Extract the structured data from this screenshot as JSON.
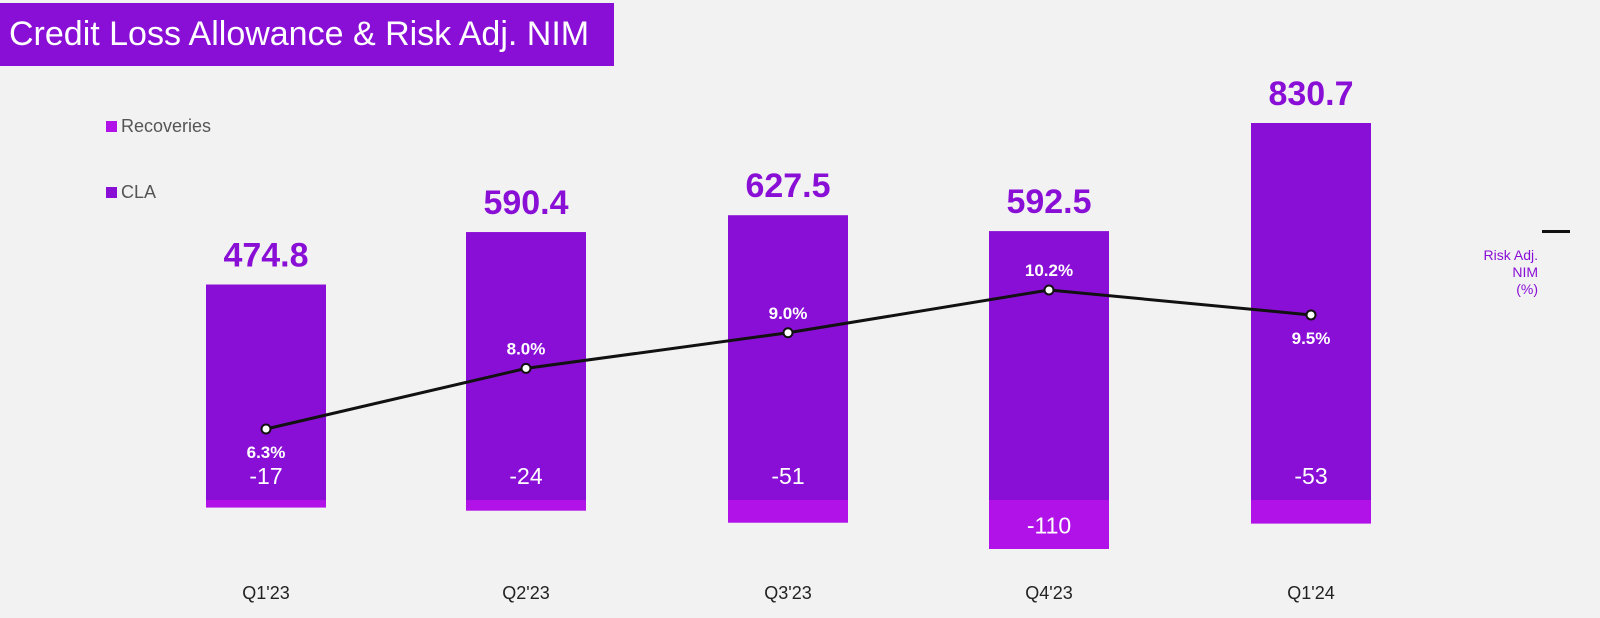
{
  "title": "Credit Loss Allowance & Risk Adj. NIM",
  "colors": {
    "title_bg": "#8a0fd6",
    "cla": "#8a0fd6",
    "recoveries": "#b012e8",
    "line": "#111111",
    "background": "#f2f2f2"
  },
  "legend": {
    "recoveries": "Recoveries",
    "cla": "CLA"
  },
  "line_legend": {
    "line1": "Risk Adj.",
    "line2": "NIM",
    "line3": "(%)"
  },
  "chart_data": {
    "type": "bar",
    "categories": [
      "Q1'23",
      "Q2'23",
      "Q3'23",
      "Q4'23",
      "Q1'24"
    ],
    "series": [
      {
        "name": "CLA",
        "values": [
          474.8,
          590.4,
          627.5,
          592.5,
          830.7
        ],
        "labels": [
          "474.8",
          "590.4",
          "627.5",
          "592.5",
          "830.7"
        ]
      },
      {
        "name": "Recoveries",
        "values": [
          -17,
          -24,
          -51,
          -110,
          -53
        ],
        "labels": [
          "-17",
          "-24",
          "-51",
          "-110",
          "-53"
        ]
      },
      {
        "name": "Risk Adj. NIM (%)",
        "type": "line",
        "values": [
          6.3,
          8.0,
          9.0,
          10.2,
          9.5
        ],
        "labels": [
          "6.3%",
          "8.0%",
          "9.0%",
          "10.2%",
          "9.5%"
        ]
      }
    ]
  }
}
